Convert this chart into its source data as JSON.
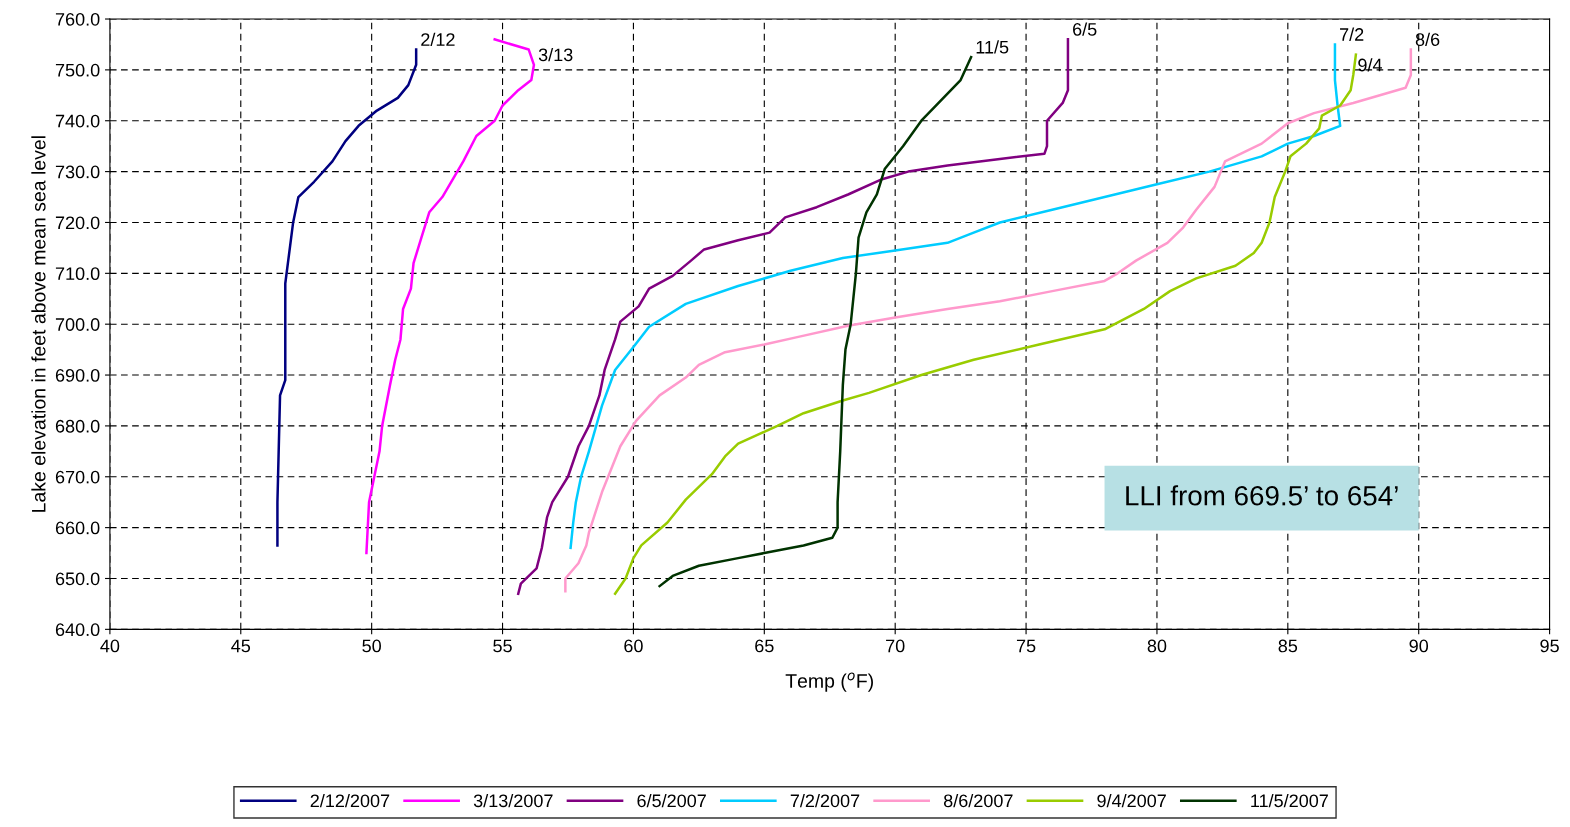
{
  "chart_data": {
    "type": "line",
    "xlabel": "Temp ($^{o}$F)",
    "ylabel": "Lake elevation in feet above mean sea level",
    "xlim": [
      40,
      95
    ],
    "xticks": [
      40,
      45,
      50,
      55,
      60,
      65,
      70,
      75,
      80,
      85,
      90,
      95
    ],
    "ylim": [
      640,
      760
    ],
    "yticks": [
      {
        "value": 640,
        "label": "640.0"
      },
      {
        "value": 650,
        "label": "650.0"
      },
      {
        "value": 660,
        "label": "660.0"
      },
      {
        "value": 670,
        "label": "670.0"
      },
      {
        "value": 680,
        "label": "680.0"
      },
      {
        "value": 690,
        "label": "690.0"
      },
      {
        "value": 700,
        "label": "700.0"
      },
      {
        "value": 710,
        "label": "710.0"
      },
      {
        "value": 720,
        "label": "720.0"
      },
      {
        "value": 730,
        "label": "730.0"
      },
      {
        "value": 740,
        "label": "740.0"
      },
      {
        "value": 750,
        "label": "750.0"
      },
      {
        "value": 760,
        "label": "760.0"
      }
    ],
    "grid": true,
    "line_style": "solid",
    "marker": "none",
    "legend": "bottom",
    "series": [
      {
        "name": "2/12/2007",
        "color": "#000080",
        "x": [
          46.4,
          46.4,
          46.5,
          46.7,
          46.7,
          46.8,
          47.0,
          47.2,
          47.8,
          48.5,
          49.0,
          49.5,
          50.2,
          51.0,
          51.4,
          51.7,
          51.7
        ],
        "values": [
          656.5,
          665,
          686,
          689,
          708,
          712,
          720,
          725,
          728,
          732,
          736,
          739,
          742,
          744.5,
          747,
          751,
          754
        ]
      },
      {
        "name": "3/13/2007",
        "color": "#ff00ff",
        "x": [
          49.8,
          49.9,
          50.1,
          50.3,
          50.4,
          50.7,
          50.9,
          51.1,
          51.2,
          51.5,
          51.6,
          51.9,
          52.2,
          52.7,
          53.5,
          54.0,
          54.7,
          55.0,
          55.6,
          56.1,
          56.2,
          56.0,
          54.7
        ],
        "values": [
          655,
          665,
          670,
          675,
          680,
          688,
          693,
          697,
          703,
          707,
          712,
          717,
          722,
          725,
          732,
          737,
          740,
          743,
          746,
          748,
          751,
          754,
          756
        ]
      },
      {
        "name": "6/5/2007",
        "color": "#800080",
        "x": [
          55.6,
          55.7,
          56.3,
          56.5,
          56.7,
          56.9,
          57.5,
          57.9,
          58.3,
          58.7,
          58.9,
          59.3,
          59.5,
          60.2,
          60.6,
          61.5,
          62.2,
          62.7,
          64.0,
          65.2,
          65.8,
          67.0,
          68.2,
          69.5,
          70.5,
          72,
          74,
          75.7,
          75.8,
          75.8,
          76.4,
          76.6,
          76.6,
          76.6
        ],
        "values": [
          647,
          649,
          652,
          656,
          662,
          665,
          670,
          676,
          680,
          686,
          691,
          697,
          700.5,
          703.5,
          707,
          709.5,
          712.5,
          714.7,
          716.5,
          718,
          721,
          723,
          725.5,
          728.5,
          730,
          731.2,
          732.5,
          733.5,
          735,
          740,
          743.5,
          746,
          749,
          756
        ]
      },
      {
        "name": "7/2/2007",
        "color": "#00ccff",
        "x": [
          57.6,
          57.7,
          57.8,
          58.0,
          58.3,
          58.8,
          59.3,
          60.0,
          60.6,
          62,
          64,
          66,
          68,
          70,
          72,
          73,
          74,
          76,
          78,
          80,
          82,
          84,
          85,
          86,
          87,
          86.9,
          86.8,
          86.8
        ],
        "values": [
          656,
          661,
          665,
          670,
          675,
          684,
          691,
          695.5,
          699.5,
          704,
          707.5,
          710.5,
          713,
          714.5,
          716,
          718,
          720,
          722.5,
          725,
          727.5,
          730,
          733,
          735.5,
          737,
          739,
          743,
          748,
          755
        ]
      },
      {
        "name": "8/6/2007",
        "color": "#ff99cc",
        "x": [
          57.4,
          57.4,
          57.9,
          58.2,
          58.3,
          58.8,
          59.5,
          60.1,
          61.0,
          62.0,
          62.5,
          63.5,
          65,
          66.3,
          68.2,
          70,
          72,
          74,
          76,
          78,
          78.5,
          79.2,
          80.4,
          81.0,
          81.5,
          82.2,
          82.6,
          84,
          85,
          86,
          87.5,
          89.5,
          89.7,
          89.7
        ],
        "values": [
          647.5,
          650,
          653,
          656.5,
          659,
          667,
          676,
          681,
          686,
          689.5,
          692,
          694.5,
          696,
          697.5,
          699.7,
          701.3,
          703,
          704.5,
          706.5,
          708.5,
          710,
          712.5,
          716,
          719,
          722.5,
          727,
          732,
          735.5,
          739.5,
          741.5,
          743.5,
          746.5,
          749,
          754
        ]
      },
      {
        "name": "9/4/2007",
        "color": "#99cc00",
        "x": [
          59.3,
          59.7,
          60,
          60.3,
          61.3,
          62,
          63,
          63.5,
          64,
          65.5,
          66.5,
          68,
          69,
          71,
          73,
          75.5,
          78,
          79.5,
          80.5,
          81.5,
          83.0,
          83.7,
          84,
          84.3,
          84.5,
          84.9,
          85.1,
          85.7,
          86.2,
          86.3,
          87.0,
          87.4,
          87.5,
          87.6
        ],
        "values": [
          647,
          650,
          654,
          656.5,
          661,
          665.5,
          670.5,
          674,
          676.5,
          680,
          682.5,
          685,
          686.5,
          690,
          693,
          696,
          699,
          703,
          706.5,
          709,
          711.5,
          714,
          716,
          720,
          725,
          730,
          733,
          735.5,
          738.5,
          741,
          743,
          746,
          749,
          753
        ]
      },
      {
        "name": "11/5/2007",
        "color": "#003300",
        "x": [
          61.0,
          61.5,
          62.5,
          64,
          65,
          66.5,
          67.6,
          67.8,
          67.8,
          67.9,
          68.0,
          68.1,
          68.3,
          68.5,
          68.6,
          68.9,
          69.3,
          69.6,
          70.3,
          71,
          72.5,
          72.9
        ],
        "values": [
          648.5,
          650.5,
          652.5,
          654,
          655,
          656.5,
          658,
          660,
          665,
          675,
          688,
          695,
          700,
          710,
          717,
          722,
          725.5,
          730.5,
          735,
          740,
          748,
          752.5
        ]
      }
    ],
    "annotations": [
      {
        "text": "2/12",
        "x": 51.7,
        "y": 754
      },
      {
        "text": "3/13",
        "x": 56.2,
        "y": 751
      },
      {
        "text": "11/5",
        "x": 72.9,
        "y": 752.5
      },
      {
        "text": "6/5",
        "x": 76.6,
        "y": 756
      },
      {
        "text": "7/2",
        "x": 86.8,
        "y": 755
      },
      {
        "text": "9/4",
        "x": 87.5,
        "y": 749
      },
      {
        "text": "8/6",
        "x": 89.7,
        "y": 754
      },
      "LLI from 669.5’ to 654’"
    ]
  }
}
